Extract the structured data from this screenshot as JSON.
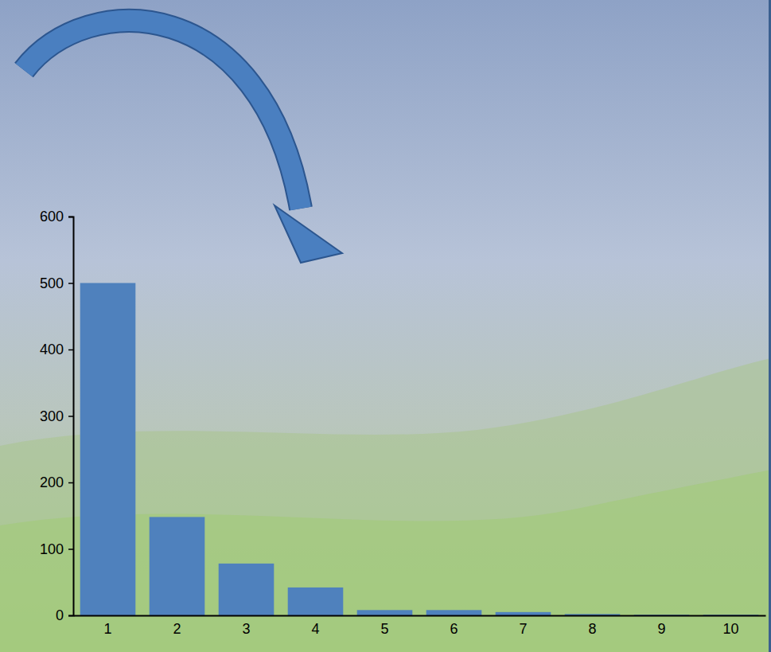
{
  "chart_data": {
    "type": "bar",
    "categories": [
      "1",
      "2",
      "3",
      "4",
      "5",
      "6",
      "7",
      "8",
      "9",
      "10"
    ],
    "values": [
      500,
      148,
      78,
      42,
      8,
      8,
      5,
      2,
      1,
      1
    ],
    "color": "#4f81bd",
    "ylim": [
      0,
      600
    ],
    "yticks": [
      0,
      100,
      200,
      300,
      400,
      500,
      600
    ],
    "grid": false
  }
}
